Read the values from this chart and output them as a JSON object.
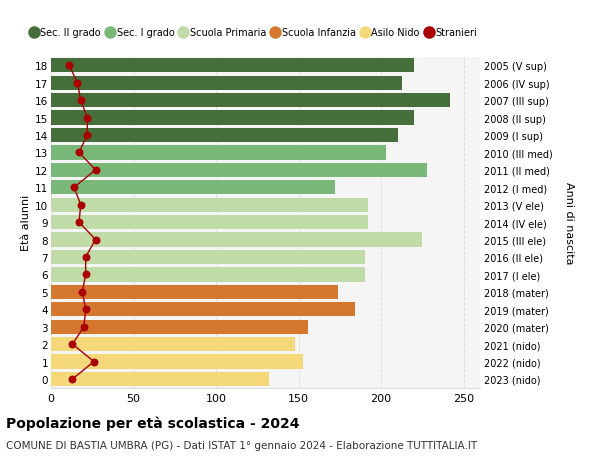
{
  "ages": [
    18,
    17,
    16,
    15,
    14,
    13,
    12,
    11,
    10,
    9,
    8,
    7,
    6,
    5,
    4,
    3,
    2,
    1,
    0
  ],
  "bar_values": [
    220,
    213,
    242,
    220,
    210,
    203,
    228,
    172,
    192,
    192,
    225,
    190,
    190,
    174,
    184,
    156,
    148,
    153,
    132
  ],
  "stranieri": [
    11,
    16,
    18,
    22,
    22,
    17,
    27,
    14,
    18,
    17,
    27,
    21,
    21,
    19,
    21,
    20,
    13,
    26,
    13
  ],
  "right_labels": [
    "2005 (V sup)",
    "2006 (IV sup)",
    "2007 (III sup)",
    "2008 (II sup)",
    "2009 (I sup)",
    "2010 (III med)",
    "2011 (II med)",
    "2012 (I med)",
    "2013 (V ele)",
    "2014 (IV ele)",
    "2015 (III ele)",
    "2016 (II ele)",
    "2017 (I ele)",
    "2018 (mater)",
    "2019 (mater)",
    "2020 (mater)",
    "2021 (nido)",
    "2022 (nido)",
    "2023 (nido)"
  ],
  "bar_colors": [
    "#456e3a",
    "#456e3a",
    "#456e3a",
    "#456e3a",
    "#456e3a",
    "#7ab87a",
    "#7ab87a",
    "#7ab87a",
    "#c0daa8",
    "#c0daa8",
    "#c0daa8",
    "#c0daa8",
    "#c0daa8",
    "#d47830",
    "#d47830",
    "#d47830",
    "#f5d87a",
    "#f5d87a",
    "#f5d87a"
  ],
  "stranieri_color": "#aa0000",
  "title": "Popolazione per età scolastica - 2024",
  "subtitle": "COMUNE DI BASTIA UMBRA (PG) - Dati ISTAT 1° gennaio 2024 - Elaborazione TUTTITALIA.IT",
  "ylabel_left": "Età alunni",
  "ylabel_right": "Anni di nascita",
  "bg_color": "#ffffff",
  "plot_bg_color": "#f5f5f5",
  "grid_color": "#dddddd",
  "xlim": [
    0,
    260
  ],
  "xticks": [
    0,
    50,
    100,
    150,
    200,
    250
  ],
  "ylim": [
    -0.5,
    18.5
  ],
  "legend_labels": [
    "Sec. II grado",
    "Sec. I grado",
    "Scuola Primaria",
    "Scuola Infanzia",
    "Asilo Nido",
    "Stranieri"
  ],
  "legend_colors": [
    "#456e3a",
    "#7ab87a",
    "#c0daa8",
    "#d47830",
    "#f5d87a",
    "#aa0000"
  ],
  "title_fontsize": 10,
  "subtitle_fontsize": 7.5,
  "bar_height": 0.82
}
